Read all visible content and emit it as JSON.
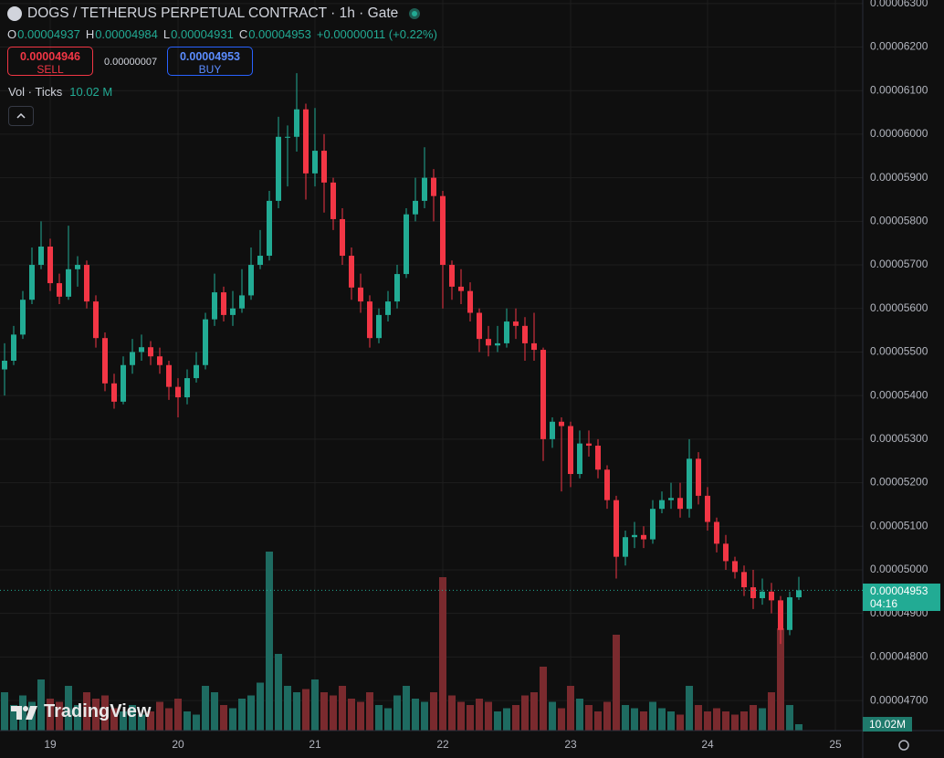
{
  "chart_data": {
    "type": "candlestick",
    "title": "DOGS / TETHERUS PERPETUAL CONTRACT · 1h · Gate",
    "ohlc_legend": [
      {
        "key": "O",
        "value": "0.00004937"
      },
      {
        "key": "H",
        "value": "0.00004984"
      },
      {
        "key": "L",
        "value": "0.00004931"
      },
      {
        "key": "C",
        "value": "0.00004953"
      }
    ],
    "change": "+0.00000011 (+0.22%)",
    "sell": {
      "price": "0.00004946",
      "label": "SELL"
    },
    "spread": "0.00000007",
    "buy": {
      "price": "0.00004953",
      "label": "BUY"
    },
    "last_price": {
      "value": 4.953e-05,
      "label": "0.00004953",
      "countdown": "04:16"
    },
    "watermark": "TradingView",
    "up_color": "#22ab94",
    "down_color": "#f23645",
    "ylim": [
      4.631e-05,
      6.308e-05
    ],
    "yticks": [
      {
        "value": 4.7e-05,
        "label": "0.00004700"
      },
      {
        "value": 4.8e-05,
        "label": "0.00004800"
      },
      {
        "value": 4.9e-05,
        "label": "0.00004900"
      },
      {
        "value": 5e-05,
        "label": "0.00005000"
      },
      {
        "value": 5.1e-05,
        "label": "0.00005100"
      },
      {
        "value": 5.2e-05,
        "label": "0.00005200"
      },
      {
        "value": 5.3e-05,
        "label": "0.00005300"
      },
      {
        "value": 5.4e-05,
        "label": "0.00005400"
      },
      {
        "value": 5.5e-05,
        "label": "0.00005500"
      },
      {
        "value": 5.6e-05,
        "label": "0.00005600"
      },
      {
        "value": 5.7e-05,
        "label": "0.00005700"
      },
      {
        "value": 5.8e-05,
        "label": "0.00005800"
      },
      {
        "value": 5.9e-05,
        "label": "0.00005900"
      },
      {
        "value": 6e-05,
        "label": "0.00006000"
      },
      {
        "value": 6.1e-05,
        "label": "0.00006100"
      },
      {
        "value": 6.2e-05,
        "label": "0.00006200"
      },
      {
        "value": 6.3e-05,
        "label": "0.00006300"
      }
    ],
    "grid": true,
    "categories": [
      null,
      null,
      null,
      null,
      null,
      "19",
      null,
      null,
      null,
      null,
      null,
      null,
      null,
      null,
      null,
      null,
      null,
      null,
      null,
      "20",
      null,
      null,
      null,
      null,
      null,
      null,
      null,
      null,
      null,
      null,
      null,
      null,
      null,
      null,
      "21",
      null,
      null,
      null,
      null,
      null,
      null,
      null,
      null,
      null,
      null,
      null,
      null,
      null,
      "22",
      null,
      null,
      null,
      null,
      null,
      null,
      null,
      null,
      null,
      null,
      null,
      null,
      null,
      "23",
      null,
      null,
      null,
      null,
      null,
      null,
      null,
      null,
      null,
      null,
      null,
      null,
      null,
      null,
      "24",
      null,
      null,
      null,
      null,
      null,
      null,
      null,
      null,
      null,
      null,
      null,
      null,
      null,
      "25"
    ],
    "open": [
      5.46e-05,
      5.48e-05,
      5.54e-05,
      5.62e-05,
      5.7e-05,
      5.742e-05,
      5.658e-05,
      5.627e-05,
      5.69e-05,
      5.7e-05,
      5.616e-05,
      5.532e-05,
      5.428e-05,
      5.386e-05,
      5.47e-05,
      5.5e-05,
      5.511e-05,
      5.49e-05,
      5.47e-05,
      5.42e-05,
      5.396e-05,
      5.44e-05,
      5.47e-05,
      5.575e-05,
      5.637e-05,
      5.585e-05,
      5.6e-05,
      5.63e-05,
      5.7e-05,
      5.721e-05,
      5.847e-05,
      5.994e-05,
      5.994e-05,
      6.057e-05,
      5.91e-05,
      5.962e-05,
      5.889e-05,
      5.805e-05,
      5.721e-05,
      5.648e-05,
      5.616e-05,
      5.532e-05,
      5.585e-05,
      5.616e-05,
      5.679e-05,
      5.816e-05,
      5.847e-05,
      5.9e-05,
      5.858e-05,
      5.7e-05,
      5.65e-05,
      5.64e-05,
      5.59e-05,
      5.53e-05,
      5.515e-05,
      5.52e-05,
      5.57e-05,
      5.56e-05,
      5.52e-05,
      5.505e-05,
      5.3e-05,
      5.34e-05,
      5.33e-05,
      5.22e-05,
      5.29e-05,
      5.285e-05,
      5.23e-05,
      5.16e-05,
      5.03e-05,
      5.075e-05,
      5.08e-05,
      5.07e-05,
      5.14e-05,
      5.16e-05,
      5.165e-05,
      5.14e-05,
      5.255e-05,
      5.17e-05,
      5.11e-05,
      5.06e-05,
      5.02e-05,
      4.995e-05,
      4.96e-05,
      4.935e-05,
      4.95e-05,
      4.93e-05,
      4.862e-05,
      4.937e-05,
      null,
      null,
      null,
      null
    ],
    "high": [
      5.52e-05,
      5.56e-05,
      5.64e-05,
      5.74e-05,
      5.8e-05,
      5.76e-05,
      5.68e-05,
      5.79e-05,
      5.72e-05,
      5.71e-05,
      5.63e-05,
      5.545e-05,
      5.45e-05,
      5.49e-05,
      5.53e-05,
      5.54e-05,
      5.525e-05,
      5.51e-05,
      5.48e-05,
      5.44e-05,
      5.46e-05,
      5.5e-05,
      5.59e-05,
      5.68e-05,
      5.65e-05,
      5.64e-05,
      5.69e-05,
      5.74e-05,
      5.78e-05,
      5.87e-05,
      6.04e-05,
      6.02e-05,
      6.14e-05,
      6.07e-05,
      6.06e-05,
      6e-05,
      5.9e-05,
      5.83e-05,
      5.74e-05,
      5.68e-05,
      5.63e-05,
      5.6e-05,
      5.64e-05,
      5.7e-05,
      5.83e-05,
      5.9e-05,
      5.97e-05,
      5.92e-05,
      5.87e-05,
      5.71e-05,
      5.69e-05,
      5.66e-05,
      5.6e-05,
      5.56e-05,
      5.56e-05,
      5.6e-05,
      5.6e-05,
      5.58e-05,
      5.59e-05,
      5.51e-05,
      5.35e-05,
      5.35e-05,
      5.34e-05,
      5.32e-05,
      5.32e-05,
      5.3e-05,
      5.24e-05,
      5.17e-05,
      5.09e-05,
      5.11e-05,
      5.1e-05,
      5.16e-05,
      5.18e-05,
      5.2e-05,
      5.2e-05,
      5.3e-05,
      5.27e-05,
      5.19e-05,
      5.12e-05,
      5.08e-05,
      5.03e-05,
      5.01e-05,
      5e-05,
      4.98e-05,
      4.97e-05,
      4.94e-05,
      4.95e-05,
      4.984e-05,
      null,
      null,
      null,
      null
    ],
    "low": [
      5.4e-05,
      5.47e-05,
      5.53e-05,
      5.61e-05,
      5.69e-05,
      5.64e-05,
      5.61e-05,
      5.62e-05,
      5.65e-05,
      5.6e-05,
      5.51e-05,
      5.41e-05,
      5.37e-05,
      5.38e-05,
      5.45e-05,
      5.48e-05,
      5.47e-05,
      5.45e-05,
      5.39e-05,
      5.35e-05,
      5.38e-05,
      5.43e-05,
      5.46e-05,
      5.56e-05,
      5.57e-05,
      5.56e-05,
      5.59e-05,
      5.62e-05,
      5.69e-05,
      5.71e-05,
      5.83e-05,
      5.88e-05,
      5.96e-05,
      5.85e-05,
      5.88e-05,
      5.82e-05,
      5.78e-05,
      5.7e-05,
      5.62e-05,
      5.59e-05,
      5.51e-05,
      5.52e-05,
      5.57e-05,
      5.6e-05,
      5.67e-05,
      5.8e-05,
      5.83e-05,
      5.8e-05,
      5.6e-05,
      5.62e-05,
      5.61e-05,
      5.57e-05,
      5.5e-05,
      5.49e-05,
      5.5e-05,
      5.51e-05,
      5.53e-05,
      5.48e-05,
      5.48e-05,
      5.25e-05,
      5.28e-05,
      5.18e-05,
      5.19e-05,
      5.21e-05,
      5.26e-05,
      5.21e-05,
      5.14e-05,
      4.98e-05,
      5.01e-05,
      5.05e-05,
      5.05e-05,
      5.06e-05,
      5.13e-05,
      5.14e-05,
      5.12e-05,
      5.12e-05,
      5.15e-05,
      5.09e-05,
      5.04e-05,
      5e-05,
      4.98e-05,
      4.94e-05,
      4.91e-05,
      4.92e-05,
      4.9e-05,
      4.83e-05,
      4.85e-05,
      4.931e-05,
      null,
      null,
      null,
      null
    ],
    "close": [
      5.48e-05,
      5.54e-05,
      5.62e-05,
      5.7e-05,
      5.742e-05,
      5.658e-05,
      5.627e-05,
      5.69e-05,
      5.7e-05,
      5.616e-05,
      5.532e-05,
      5.428e-05,
      5.386e-05,
      5.47e-05,
      5.5e-05,
      5.511e-05,
      5.49e-05,
      5.47e-05,
      5.42e-05,
      5.396e-05,
      5.44e-05,
      5.47e-05,
      5.575e-05,
      5.637e-05,
      5.585e-05,
      5.6e-05,
      5.63e-05,
      5.7e-05,
      5.721e-05,
      5.847e-05,
      5.994e-05,
      5.994e-05,
      6.057e-05,
      5.91e-05,
      5.962e-05,
      5.889e-05,
      5.805e-05,
      5.721e-05,
      5.648e-05,
      5.616e-05,
      5.532e-05,
      5.585e-05,
      5.616e-05,
      5.679e-05,
      5.816e-05,
      5.847e-05,
      5.9e-05,
      5.858e-05,
      5.7e-05,
      5.65e-05,
      5.64e-05,
      5.59e-05,
      5.53e-05,
      5.515e-05,
      5.52e-05,
      5.57e-05,
      5.56e-05,
      5.52e-05,
      5.505e-05,
      5.3e-05,
      5.34e-05,
      5.33e-05,
      5.22e-05,
      5.29e-05,
      5.285e-05,
      5.23e-05,
      5.16e-05,
      5.03e-05,
      5.075e-05,
      5.08e-05,
      5.07e-05,
      5.14e-05,
      5.16e-05,
      5.165e-05,
      5.14e-05,
      5.255e-05,
      5.17e-05,
      5.11e-05,
      5.06e-05,
      5.02e-05,
      4.995e-05,
      4.96e-05,
      4.935e-05,
      4.95e-05,
      4.93e-05,
      4.862e-05,
      4.937e-05,
      4.953e-05,
      null,
      null,
      null,
      null
    ],
    "volume": {
      "name": "Vol · Ticks",
      "header_label": "10.02 M",
      "axis_label": "10.02M",
      "up_color": "#1e6b61",
      "down_color": "#7a2a2e",
      "ylim": [
        0,
        300
      ],
      "values": [
        60,
        40,
        55,
        45,
        80,
        50,
        45,
        70,
        40,
        60,
        50,
        55,
        35,
        30,
        40,
        25,
        30,
        45,
        35,
        50,
        30,
        25,
        70,
        60,
        40,
        35,
        50,
        55,
        75,
        280,
        120,
        70,
        60,
        65,
        80,
        60,
        55,
        70,
        50,
        45,
        60,
        40,
        35,
        55,
        70,
        50,
        45,
        60,
        240,
        55,
        45,
        40,
        50,
        45,
        30,
        35,
        40,
        55,
        60,
        100,
        45,
        35,
        70,
        50,
        40,
        30,
        45,
        150,
        40,
        35,
        30,
        45,
        35,
        30,
        25,
        70,
        40,
        30,
        35,
        30,
        25,
        30,
        40,
        35,
        60,
        160,
        40,
        10.02,
        null,
        null,
        null,
        null
      ]
    }
  }
}
